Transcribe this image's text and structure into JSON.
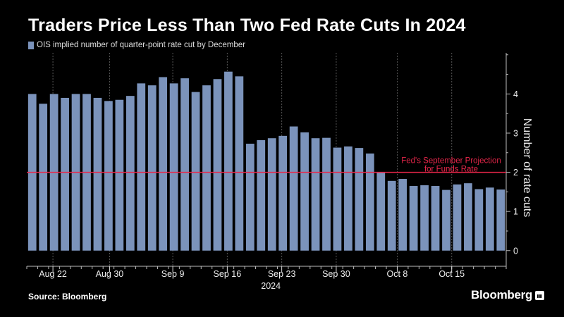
{
  "title": "Traders Price Less Than Two Fed Rate Cuts In 2024",
  "source": "Source: Bloomberg",
  "brand": "Bloomberg",
  "colors": {
    "bar": "#7b93bb",
    "reference_line": "#e8264a",
    "grid": "#555555",
    "background": "#000000"
  },
  "chart_data": {
    "type": "bar",
    "title": "Traders Price Less Than Two Fed Rate Cuts In 2024",
    "legend": "OIS implied number of quarter-point rate cut by December",
    "ylabel": "Number of rate cuts",
    "xlabel": "2024",
    "ylim": [
      -0.4,
      5.05
    ],
    "yticks": [
      0,
      1,
      2,
      3,
      4
    ],
    "x_tick_labels": [
      {
        "label": "Aug 22",
        "index": 2.4
      },
      {
        "label": "Aug 30",
        "index": 7.6
      },
      {
        "label": "Sep 9",
        "index": 13.4
      },
      {
        "label": "Sep 16",
        "index": 18.4
      },
      {
        "label": "Sep 23",
        "index": 23.4
      },
      {
        "label": "Sep 30",
        "index": 28.4
      },
      {
        "label": "Oct 8",
        "index": 34.0
      },
      {
        "label": "Oct 15",
        "index": 39.0
      }
    ],
    "year_label": "2024",
    "year_index": 22.4,
    "reference_line": {
      "value": 2.0,
      "label": "Fed's September Projection",
      "label2": "for Funds Rate"
    },
    "values": [
      4.0,
      3.75,
      4.0,
      3.9,
      4.0,
      4.0,
      3.9,
      3.82,
      3.85,
      3.95,
      4.27,
      4.22,
      4.43,
      4.27,
      4.4,
      4.05,
      4.22,
      4.38,
      4.57,
      4.45,
      2.73,
      2.82,
      2.87,
      2.93,
      3.17,
      3.02,
      2.87,
      2.88,
      2.63,
      2.66,
      2.62,
      2.48,
      1.99,
      1.78,
      1.83,
      1.65,
      1.67,
      1.65,
      1.55,
      1.69,
      1.72,
      1.57,
      1.61,
      1.56
    ]
  }
}
